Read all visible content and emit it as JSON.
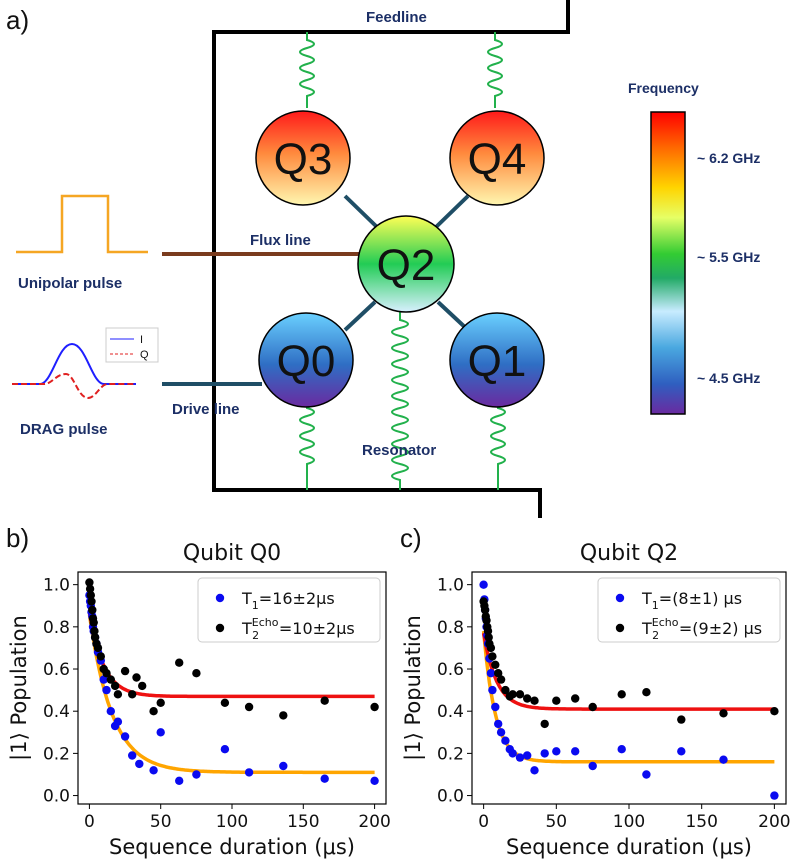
{
  "panel_a": {
    "label": "a)",
    "feedline_label": "Feedline",
    "flux_line_label": "Flux line",
    "drive_line_label": "Drive line",
    "resonator_label": "Resonator",
    "unipolar_pulse_label": "Unipolar pulse",
    "drag_pulse_label": "DRAG pulse",
    "drag_legend": {
      "i_label": "I",
      "q_label": "Q"
    },
    "qubits": [
      "Q3",
      "Q4",
      "Q2",
      "Q0",
      "Q1"
    ],
    "colorbar": {
      "title": "Frequency",
      "ticks": [
        "~ 6.2 GHz",
        "~ 5.5 GHz",
        "~ 4.5 GHz"
      ]
    },
    "colors": {
      "wire": "#000000",
      "resonator": "#22b14c",
      "flux_line": "#7a3b1e",
      "drive_line": "#1f4e66",
      "coupler": "#1f4e66",
      "pulse": "#f5a623",
      "drag_i": "#1f1fff",
      "drag_q": "#e02020"
    }
  },
  "chart_data": [
    {
      "panel_label": "b)",
      "type": "scatter",
      "title": "Qubit Q0",
      "xlabel": "Sequence duration (μs)",
      "ylabel": "|1⟩ Population",
      "xlim": [
        -8,
        208
      ],
      "ylim": [
        -0.04,
        1.06
      ],
      "xticks": [
        0,
        50,
        100,
        150,
        200
      ],
      "yticks": [
        0.0,
        0.2,
        0.4,
        0.6,
        0.8,
        1.0
      ],
      "legend_placement": "top-right",
      "series": [
        {
          "name": "T1=16±2μs",
          "legend_main": "T",
          "legend_sub": "1",
          "legend_rest": "=16±2μs",
          "color": "#0a0af0",
          "fit_color": "#ffa500",
          "fit": {
            "a": 0.75,
            "tau": 16,
            "c": 0.11
          },
          "x": [
            0,
            0.5,
            1,
            1.5,
            2,
            2.5,
            3,
            4,
            5,
            6,
            8,
            10,
            12,
            15,
            18,
            20,
            25,
            30,
            35,
            45,
            50,
            63,
            75,
            95,
            112,
            136,
            165,
            200
          ],
          "y": [
            0.95,
            0.92,
            0.9,
            0.87,
            0.85,
            0.8,
            0.78,
            0.75,
            0.72,
            0.68,
            0.64,
            0.55,
            0.5,
            0.4,
            0.33,
            0.35,
            0.28,
            0.19,
            0.15,
            0.12,
            0.3,
            0.07,
            0.1,
            0.22,
            0.11,
            0.14,
            0.08,
            0.07
          ]
        },
        {
          "name": "T2Echo=10±2μs",
          "legend_main": "T",
          "legend_sub": "2",
          "legend_sup": "Echo",
          "legend_rest": "=10±2μs",
          "color": "#000000",
          "fit_color": "#ee1111",
          "fit": {
            "a": 0.4,
            "tau": 10,
            "c": 0.47
          },
          "x": [
            0,
            0.5,
            1,
            1.5,
            2,
            2.5,
            3,
            3.5,
            4,
            5,
            6,
            8,
            10,
            12,
            15,
            18,
            20,
            25,
            30,
            33,
            37,
            45,
            50,
            63,
            75,
            95,
            112,
            136,
            165,
            200
          ],
          "y": [
            1.01,
            0.98,
            0.95,
            0.92,
            0.88,
            0.84,
            0.82,
            0.78,
            0.75,
            0.72,
            0.7,
            0.66,
            0.6,
            0.58,
            0.55,
            0.52,
            0.48,
            0.59,
            0.48,
            0.56,
            0.52,
            0.4,
            0.44,
            0.63,
            0.58,
            0.44,
            0.42,
            0.38,
            0.45,
            0.42
          ]
        }
      ]
    },
    {
      "panel_label": "c)",
      "type": "scatter",
      "title": "Qubit Q2",
      "xlabel": "Sequence duration (μs)",
      "ylabel": "|1⟩ Population",
      "xlim": [
        -8,
        208
      ],
      "ylim": [
        -0.04,
        1.06
      ],
      "xticks": [
        0,
        50,
        100,
        150,
        200
      ],
      "yticks": [
        0.0,
        0.2,
        0.4,
        0.6,
        0.8,
        1.0
      ],
      "legend_placement": "top-right",
      "series": [
        {
          "name": "T1=(8±1) μs",
          "legend_main": "T",
          "legend_sub": "1",
          "legend_rest": "=(8±1) μs",
          "color": "#0a0af0",
          "fit_color": "#ffa500",
          "fit": {
            "a": 0.62,
            "tau": 8,
            "c": 0.16
          },
          "x": [
            0,
            0.5,
            1,
            1.5,
            2,
            2.5,
            3,
            4,
            5,
            6,
            8,
            10,
            12,
            15,
            18,
            20,
            25,
            30,
            35,
            42,
            50,
            63,
            75,
            95,
            112,
            136,
            165,
            200
          ],
          "y": [
            1.0,
            0.93,
            0.88,
            0.84,
            0.8,
            0.76,
            0.72,
            0.65,
            0.58,
            0.5,
            0.42,
            0.34,
            0.3,
            0.26,
            0.22,
            0.2,
            0.18,
            0.19,
            0.12,
            0.2,
            0.21,
            0.21,
            0.14,
            0.22,
            0.1,
            0.21,
            0.17,
            0.0
          ]
        },
        {
          "name": "T2Echo=(9±2) μs",
          "legend_main": "T",
          "legend_sub": "2",
          "legend_sup": "Echo",
          "legend_rest": "=(9±2) μs",
          "color": "#000000",
          "fit_color": "#ee1111",
          "fit": {
            "a": 0.36,
            "tau": 9,
            "c": 0.41
          },
          "x": [
            0,
            0.5,
            1,
            1.5,
            2,
            2.5,
            3,
            3.5,
            4,
            5,
            6,
            8,
            10,
            12,
            15,
            18,
            20,
            25,
            30,
            35,
            42,
            50,
            63,
            75,
            95,
            112,
            136,
            165,
            200
          ],
          "y": [
            0.92,
            0.9,
            0.88,
            0.85,
            0.83,
            0.8,
            0.78,
            0.75,
            0.72,
            0.7,
            0.66,
            0.62,
            0.58,
            0.55,
            0.5,
            0.47,
            0.48,
            0.48,
            0.46,
            0.45,
            0.34,
            0.45,
            0.46,
            0.42,
            0.48,
            0.49,
            0.36,
            0.39,
            0.4
          ]
        }
      ]
    }
  ]
}
